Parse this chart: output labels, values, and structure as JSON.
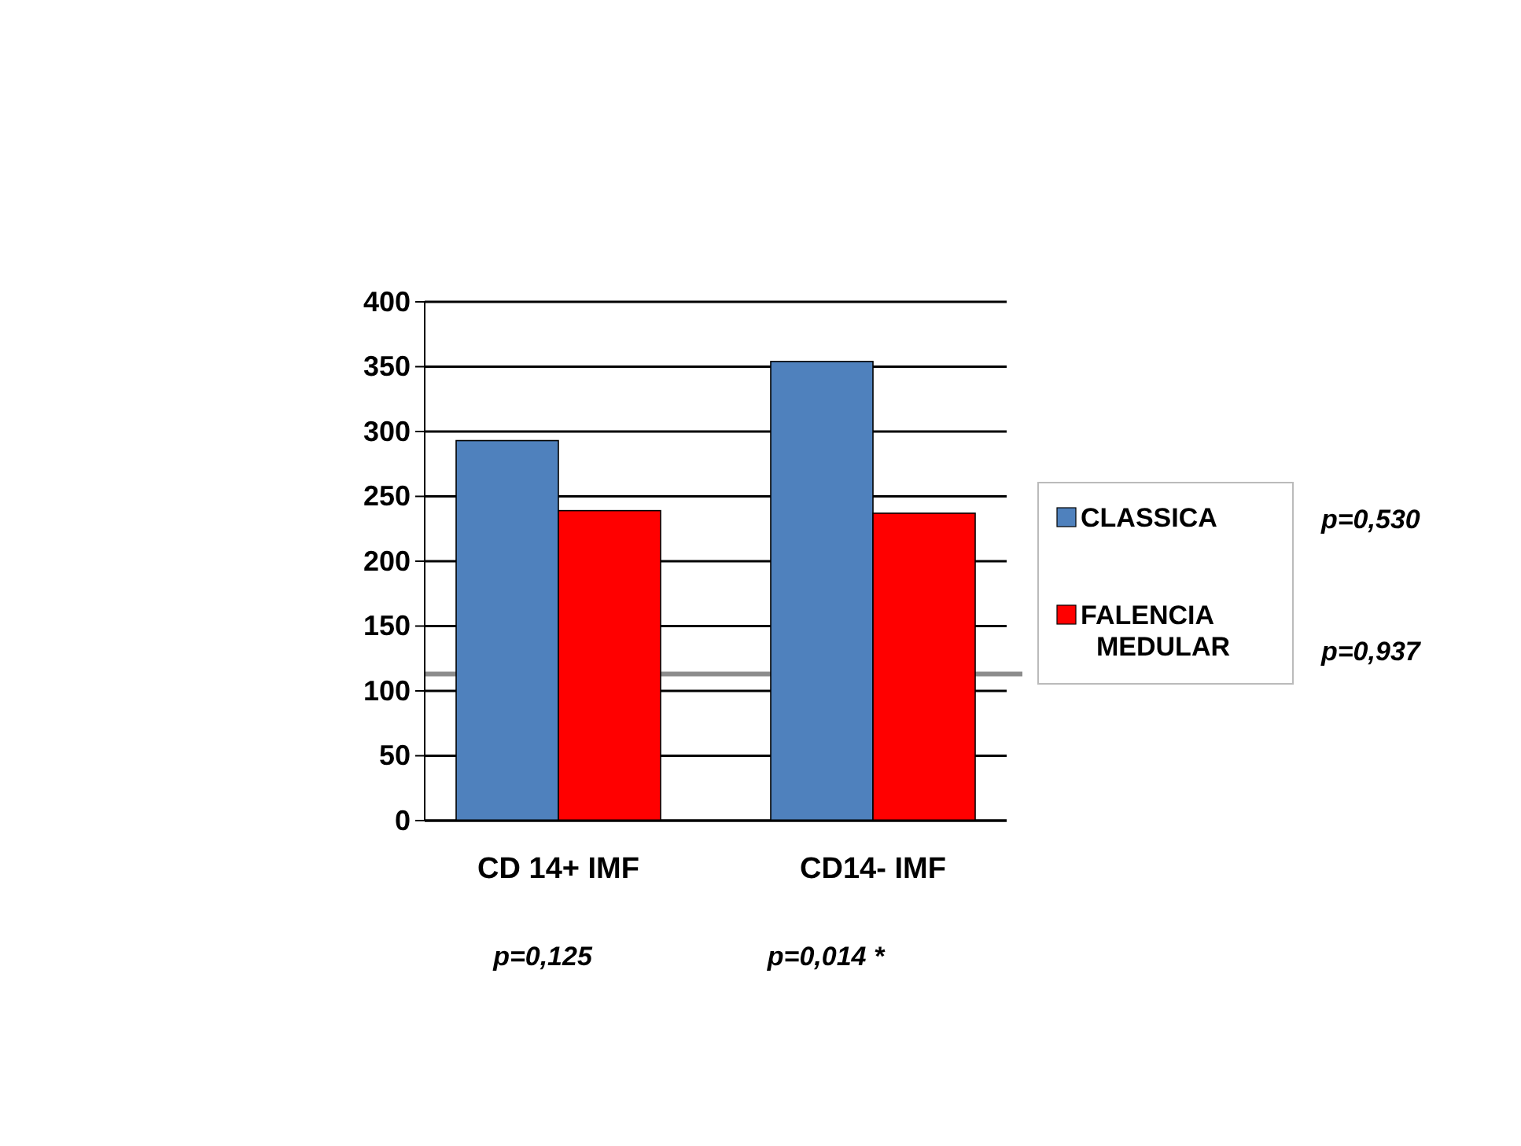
{
  "chart_data": {
    "type": "bar",
    "categories": [
      "CD 14+ IMF",
      "CD14- IMF"
    ],
    "series": [
      {
        "name": "CLASSICA",
        "color": "#4f81bd",
        "values": [
          293,
          354
        ]
      },
      {
        "name": "FALENCIA MEDULAR",
        "color": "#ff0000",
        "values": [
          239,
          237
        ]
      }
    ],
    "ylim": [
      0,
      400
    ],
    "yticks": [
      0,
      50,
      100,
      150,
      200,
      250,
      300,
      350,
      400
    ],
    "grid": "y",
    "legend": "right",
    "ref_lines": [
      {
        "axis": "y",
        "value": 113,
        "color": "#8c8c8c"
      }
    ],
    "annotations": [
      "p=0,530",
      "p=0,937",
      "p=0,125",
      "p=0,014 *"
    ]
  }
}
